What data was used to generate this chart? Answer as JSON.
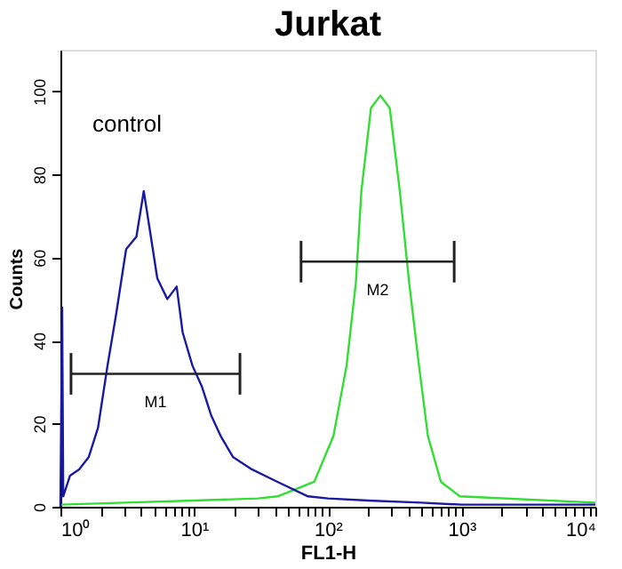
{
  "chart_data": {
    "type": "line",
    "title": "Jurkat",
    "xlabel": "FL1-H",
    "ylabel": "Counts",
    "log": "x",
    "xlim": [
      1,
      10000
    ],
    "ylim": [
      0,
      110
    ],
    "xticks": [
      {
        "value": 1,
        "label": "10⁰"
      },
      {
        "value": 2,
        "label": null
      },
      {
        "value": 3,
        "label": null
      },
      {
        "value": 4,
        "label": null
      },
      {
        "value": 5,
        "label": null
      },
      {
        "value": 6,
        "label": null
      },
      {
        "value": 7,
        "label": null
      },
      {
        "value": 8,
        "label": null
      },
      {
        "value": 9,
        "label": null
      },
      {
        "value": 10,
        "label": "10¹"
      },
      {
        "value": 20,
        "label": null
      },
      {
        "value": 30,
        "label": null
      },
      {
        "value": 40,
        "label": null
      },
      {
        "value": 50,
        "label": null
      },
      {
        "value": 60,
        "label": null
      },
      {
        "value": 70,
        "label": null
      },
      {
        "value": 80,
        "label": null
      },
      {
        "value": 90,
        "label": null
      },
      {
        "value": 100,
        "label": "10²"
      },
      {
        "value": 200,
        "label": null
      },
      {
        "value": 300,
        "label": null
      },
      {
        "value": 400,
        "label": null
      },
      {
        "value": 500,
        "label": null
      },
      {
        "value": 600,
        "label": null
      },
      {
        "value": 700,
        "label": null
      },
      {
        "value": 800,
        "label": null
      },
      {
        "value": 900,
        "label": null
      },
      {
        "value": 1000,
        "label": "10³"
      },
      {
        "value": 2000,
        "label": null
      },
      {
        "value": 3000,
        "label": null
      },
      {
        "value": 4000,
        "label": null
      },
      {
        "value": 5000,
        "label": null
      },
      {
        "value": 6000,
        "label": null
      },
      {
        "value": 7000,
        "label": null
      },
      {
        "value": 8000,
        "label": null
      },
      {
        "value": 9000,
        "label": null
      },
      {
        "value": 10000,
        "label": "10⁴"
      }
    ],
    "yticks": [
      0,
      20,
      40,
      60,
      80,
      100
    ],
    "grid": false,
    "line_style": "solid",
    "marker": "none",
    "series": [
      {
        "color": "#33dd33",
        "x": [
          1,
          3,
          10,
          30,
          42,
          79,
          110,
          138,
          162,
          178,
          210,
          247,
          290,
          345,
          405,
          480,
          560,
          700,
          970,
          10000
        ],
        "values": [
          0.5,
          1,
          1.5,
          2,
          2.5,
          6,
          17,
          34,
          54,
          76,
          96,
          99,
          96,
          76,
          54,
          34,
          17,
          6,
          2.5,
          1
        ]
      },
      {
        "color": "#1a1aa0",
        "x": [
          1,
          1.03,
          1.05,
          1.18,
          1.38,
          1.63,
          1.91,
          2.25,
          2.6,
          3.1,
          3.7,
          4.2,
          4.8,
          5.3,
          6.3,
          7.4,
          8.2,
          9.7,
          11.4,
          13.4,
          15.8,
          19.5,
          27,
          42,
          71,
          100,
          200,
          500,
          1000,
          10000
        ],
        "values": [
          0,
          48,
          2.5,
          7.5,
          9,
          12,
          19,
          34,
          46,
          62,
          65,
          76,
          64,
          55,
          50,
          53,
          42,
          34,
          29,
          22,
          17,
          12,
          9,
          6,
          2.5,
          2,
          1.5,
          1,
          0.5,
          0.5
        ]
      },
      {
        "type": "line",
        "color": "#222222",
        "x": [
          1.2,
          22
        ],
        "values": [
          32,
          32
        ],
        "errors": [
          5,
          5
        ]
      },
      {
        "type": "line",
        "color": "#222222",
        "x": [
          63,
          880
        ],
        "values": [
          59,
          59
        ],
        "errors": [
          5,
          5
        ]
      }
    ],
    "annotations": [
      "control",
      "M1",
      "M2"
    ]
  }
}
